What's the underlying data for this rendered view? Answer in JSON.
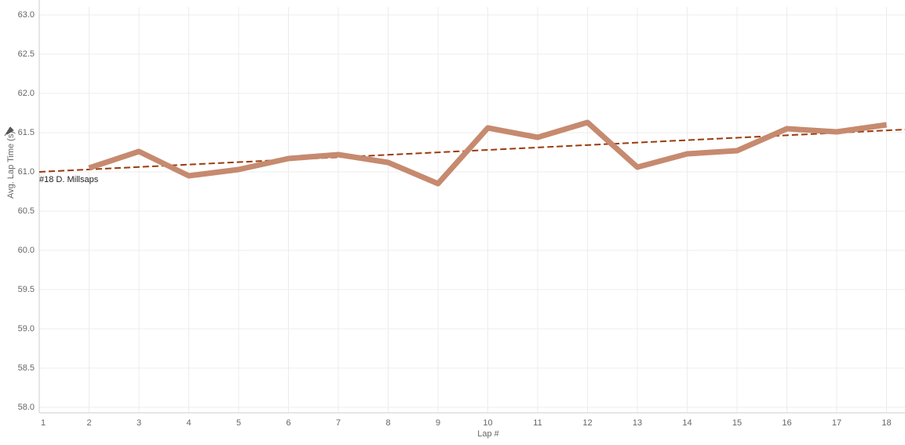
{
  "chart_data": {
    "type": "line",
    "y_label": "Avg. Lap Time (s)",
    "x_label": "Lap #",
    "x": [
      1,
      2,
      3,
      4,
      5,
      6,
      7,
      8,
      9,
      10,
      11,
      12,
      13,
      14,
      15,
      16,
      17,
      18
    ],
    "series": [
      {
        "name": "#18 D. Millsaps",
        "color": "#c68a6f",
        "values": [
          null,
          61.05,
          61.26,
          60.95,
          61.03,
          61.17,
          61.22,
          61.12,
          60.85,
          61.56,
          61.44,
          61.63,
          61.06,
          61.23,
          61.27,
          61.55,
          61.51,
          61.6
        ]
      }
    ],
    "trend_line": {
      "x": [
        1,
        18.37
      ],
      "y": [
        61.0,
        61.54
      ],
      "color": "#9c3a0c"
    },
    "xlim": [
      1,
      18.37
    ],
    "ylim": [
      58,
      63
    ],
    "xticks": [
      1,
      2,
      3,
      4,
      5,
      6,
      7,
      8,
      9,
      10,
      11,
      12,
      13,
      14,
      15,
      16,
      17,
      18
    ],
    "yticks": [
      {
        "value": 58,
        "label": "58.0"
      },
      {
        "value": 58.5,
        "label": "58.5"
      },
      {
        "value": 59,
        "label": "59.0"
      },
      {
        "value": 59.5,
        "label": "59.5"
      },
      {
        "value": 60,
        "label": "60.0"
      },
      {
        "value": 60.5,
        "label": "60.5"
      },
      {
        "value": 61,
        "label": "61.0"
      },
      {
        "value": 61.5,
        "label": "61.5"
      },
      {
        "value": 62,
        "label": "62.0"
      },
      {
        "value": 62.5,
        "label": "62.5"
      },
      {
        "value": 63,
        "label": "63.0"
      }
    ],
    "grid": true
  }
}
